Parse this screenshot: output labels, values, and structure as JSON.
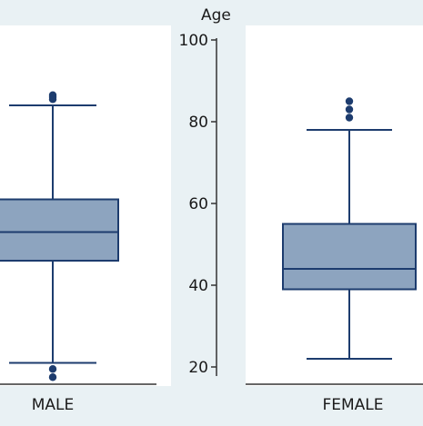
{
  "chart_data": [
    {
      "type": "boxplot",
      "category": "MALE",
      "axis_visible": false,
      "ylim": [
        17,
        104
      ],
      "box": {
        "whisker_low": 21,
        "q1": 46,
        "median": 53,
        "q3": 61,
        "whisker_high": 84
      },
      "outliers": [
        86,
        86.5,
        85.5,
        19.5,
        17.5
      ]
    },
    {
      "type": "boxplot",
      "category": "FEMALE",
      "ylabel": "Age",
      "yticks": [
        20,
        40,
        60,
        80,
        100
      ],
      "ylim": [
        17,
        104
      ],
      "box": {
        "whisker_low": 22,
        "q1": 39,
        "median": 44,
        "q3": 55,
        "whisker_high": 78
      },
      "outliers": [
        85,
        83,
        81
      ]
    }
  ],
  "colors": {
    "box_fill": "#8da4bf",
    "line": "#1d3c6e",
    "panel": "#ffffff",
    "background": "#e9f1f4"
  }
}
